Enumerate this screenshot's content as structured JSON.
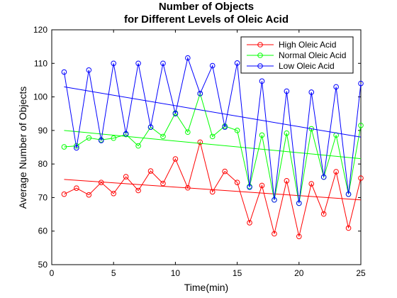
{
  "chart_data": {
    "type": "line",
    "title": [
      "Number of Objects",
      "for Different Levels of Oleic Acid"
    ],
    "xlabel": "Time(min)",
    "ylabel": "Average Number of Objects",
    "xlim": [
      0,
      25
    ],
    "ylim": [
      50,
      120
    ],
    "xticks": [
      0,
      5,
      10,
      15,
      20,
      25
    ],
    "yticks": [
      50,
      60,
      70,
      80,
      90,
      100,
      110,
      120
    ],
    "legend_position": "top-right",
    "x": [
      1,
      2,
      3,
      4,
      5,
      6,
      7,
      8,
      9,
      10,
      11,
      12,
      13,
      14,
      15,
      16,
      17,
      18,
      19,
      20,
      21,
      22,
      23,
      24,
      25
    ],
    "series": [
      {
        "name": "High Oleic Acid",
        "color": "#ff0000",
        "marker": "circle",
        "values": [
          71.0,
          72.8,
          70.8,
          74.5,
          71.2,
          76.2,
          72.1,
          77.9,
          74.2,
          81.5,
          72.9,
          86.5,
          71.7,
          77.8,
          74.5,
          62.5,
          73.6,
          59.2,
          75.0,
          58.4,
          74.1,
          65.1,
          77.7,
          60.9,
          75.8
        ],
        "trend": [
          75.4,
          69.3
        ]
      },
      {
        "name": "Normal Oleic Acid",
        "color": "#00ff00",
        "marker": "circle",
        "values": [
          85.1,
          85.4,
          87.8,
          87.2,
          87.7,
          88.8,
          85.4,
          91.0,
          88.2,
          95.2,
          89.5,
          101.0,
          88.2,
          91.3,
          90.0,
          73.3,
          88.6,
          69.3,
          89.2,
          68.3,
          90.5,
          76.1,
          88.6,
          71.0,
          91.5
        ],
        "trend": [
          90.0,
          81.6
        ]
      },
      {
        "name": "Low Oleic Acid",
        "color": "#0000ff",
        "marker": "circle",
        "values": [
          107.4,
          84.8,
          108.0,
          87.0,
          110.0,
          89.0,
          110.0,
          91.0,
          110.0,
          95.0,
          111.6,
          101.0,
          109.3,
          91.0,
          110.1,
          73.1,
          104.7,
          69.3,
          101.7,
          68.3,
          101.4,
          76.1,
          103.0,
          71.0,
          104.0
        ],
        "trend": [
          103.0,
          88.0
        ]
      }
    ]
  }
}
